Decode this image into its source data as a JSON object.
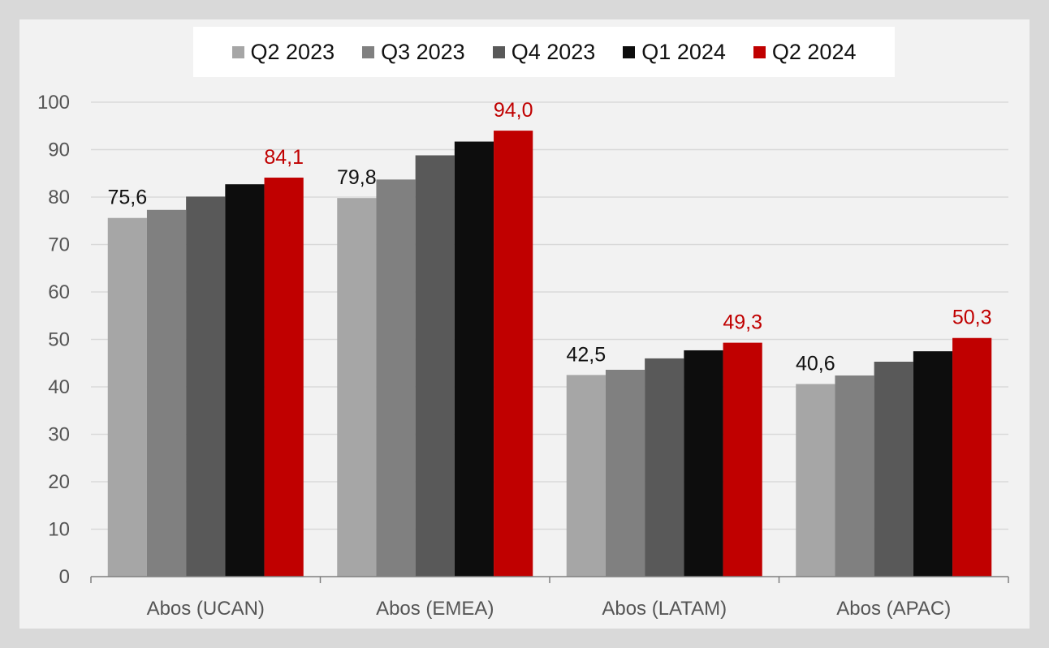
{
  "chart_data": {
    "type": "bar",
    "categories": [
      "Abos (UCAN)",
      "Abos (EMEA)",
      "Abos (LATAM)",
      "Abos (APAC)"
    ],
    "series": [
      {
        "name": "Q2 2023",
        "color": "#a6a6a6",
        "values": [
          75.6,
          79.8,
          42.5,
          40.6
        ]
      },
      {
        "name": "Q3 2023",
        "color": "#808080",
        "values": [
          77.3,
          83.7,
          43.6,
          42.4
        ]
      },
      {
        "name": "Q4 2023",
        "color": "#595959",
        "values": [
          80.1,
          88.8,
          46.0,
          45.3
        ]
      },
      {
        "name": "Q1 2024",
        "color": "#0d0d0d",
        "values": [
          82.7,
          91.7,
          47.7,
          47.5
        ]
      },
      {
        "name": "Q2 2024",
        "color": "#c00000",
        "values": [
          84.1,
          94.0,
          49.3,
          50.3
        ]
      }
    ],
    "data_labels": [
      {
        "category_index": 0,
        "series_index": 0,
        "text": "75,6",
        "color": "#111111"
      },
      {
        "category_index": 0,
        "series_index": 4,
        "text": "84,1",
        "color": "#c00000"
      },
      {
        "category_index": 1,
        "series_index": 0,
        "text": "79,8",
        "color": "#111111"
      },
      {
        "category_index": 1,
        "series_index": 4,
        "text": "94,0",
        "color": "#c00000"
      },
      {
        "category_index": 2,
        "series_index": 0,
        "text": "42,5",
        "color": "#111111"
      },
      {
        "category_index": 2,
        "series_index": 4,
        "text": "49,3",
        "color": "#c00000"
      },
      {
        "category_index": 3,
        "series_index": 0,
        "text": "40,6",
        "color": "#111111"
      },
      {
        "category_index": 3,
        "series_index": 4,
        "text": "50,3",
        "color": "#c00000"
      }
    ],
    "yticks": [
      "0",
      "10",
      "20",
      "30",
      "40",
      "50",
      "60",
      "70",
      "80",
      "90",
      "100"
    ],
    "ylim": [
      0,
      100
    ],
    "ystep": 10,
    "title": "",
    "xlabel": "",
    "ylabel": "",
    "grid": true,
    "legend_position": "top"
  }
}
